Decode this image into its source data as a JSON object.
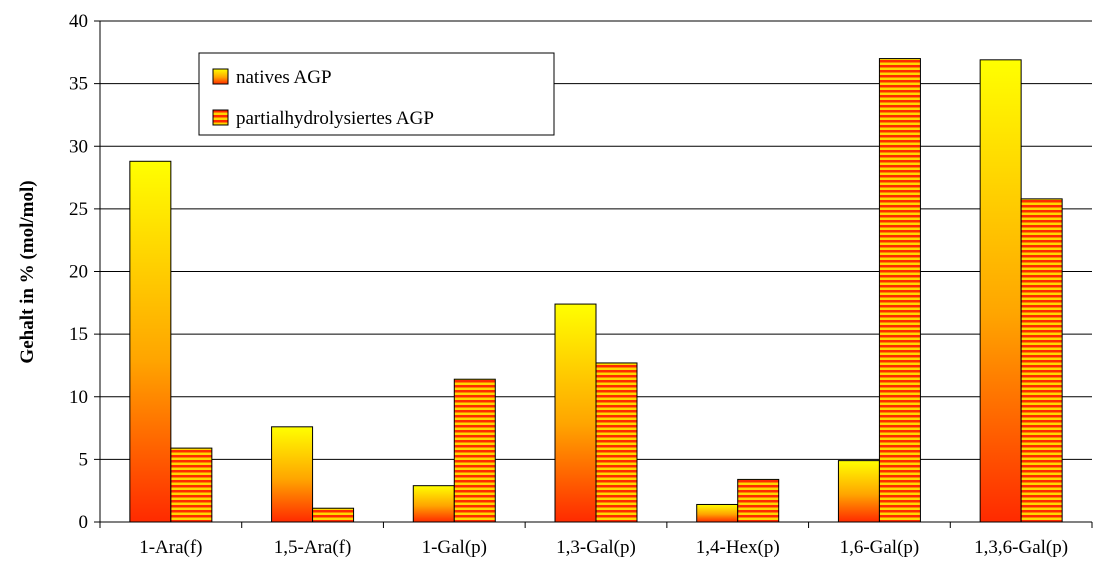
{
  "chart_data": {
    "type": "bar",
    "title": "",
    "xlabel": "",
    "ylabel": "Gehalt in % (mol/mol)",
    "ylim": [
      0,
      40
    ],
    "yticks": [
      0,
      5,
      10,
      15,
      20,
      25,
      30,
      35,
      40
    ],
    "grid": true,
    "legend_position": "top-left",
    "categories": [
      "1-Ara(f)",
      "1,5-Ara(f)",
      "1-Gal(p)",
      "1,3-Gal(p)",
      "1,4-Hex(p)",
      "1,6-Gal(p)",
      "1,3,6-Gal(p)"
    ],
    "series": [
      {
        "name": "natives AGP",
        "values": [
          28.8,
          7.6,
          2.9,
          17.4,
          1.4,
          4.9,
          36.9
        ],
        "style": "gradient",
        "colors": [
          "#ffff00",
          "#ff2a00"
        ]
      },
      {
        "name": "partialhydrolysiertes AGP",
        "values": [
          5.9,
          1.1,
          11.4,
          12.7,
          3.4,
          37.0,
          25.8
        ],
        "style": "stripes",
        "colors": [
          "#ffd700",
          "#ff2a00"
        ]
      }
    ]
  }
}
